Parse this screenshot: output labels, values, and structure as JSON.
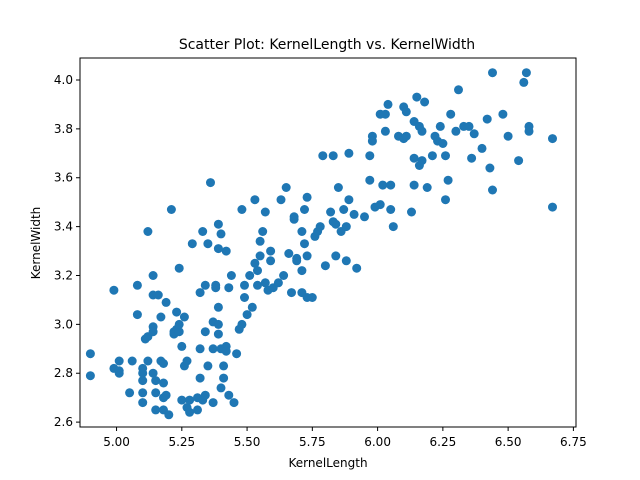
{
  "chart_data": {
    "type": "scatter",
    "title": "Scatter Plot: KernelLength vs. KernelWidth",
    "xlabel": "KernelLength",
    "ylabel": "KernelWidth",
    "xlim": [
      4.86,
      6.76
    ],
    "ylim": [
      2.58,
      4.09
    ],
    "xticks": [
      5.0,
      5.25,
      5.5,
      5.75,
      6.0,
      6.25,
      6.5,
      6.75
    ],
    "xtick_labels": [
      "5.00",
      "5.25",
      "5.50",
      "5.75",
      "6.00",
      "6.25",
      "6.50",
      "6.75"
    ],
    "yticks": [
      2.6,
      2.8,
      3.0,
      3.2,
      3.4,
      3.6,
      3.8,
      4.0
    ],
    "ytick_labels": [
      "2.6",
      "2.8",
      "3.0",
      "3.2",
      "3.4",
      "3.6",
      "3.8",
      "4.0"
    ],
    "grid": false,
    "marker_color": "#1f77b4",
    "series": [
      {
        "points": [
          [
            4.9,
            2.88
          ],
          [
            4.9,
            2.79
          ],
          [
            4.99,
            3.14
          ],
          [
            4.99,
            2.82
          ],
          [
            5.01,
            2.85
          ],
          [
            5.01,
            2.81
          ],
          [
            5.01,
            2.8
          ],
          [
            5.05,
            2.72
          ],
          [
            5.06,
            2.85
          ],
          [
            5.08,
            3.16
          ],
          [
            5.08,
            3.04
          ],
          [
            5.1,
            2.82
          ],
          [
            5.1,
            2.8
          ],
          [
            5.1,
            2.77
          ],
          [
            5.1,
            2.72
          ],
          [
            5.1,
            2.68
          ],
          [
            5.11,
            2.94
          ],
          [
            5.12,
            2.85
          ],
          [
            5.12,
            2.95
          ],
          [
            5.12,
            3.38
          ],
          [
            5.14,
            3.2
          ],
          [
            5.14,
            3.12
          ],
          [
            5.14,
            2.99
          ],
          [
            5.14,
            2.97
          ],
          [
            5.14,
            2.8
          ],
          [
            5.15,
            2.77
          ],
          [
            5.15,
            2.72
          ],
          [
            5.15,
            2.65
          ],
          [
            5.16,
            3.12
          ],
          [
            5.17,
            3.03
          ],
          [
            5.17,
            2.85
          ],
          [
            5.18,
            2.84
          ],
          [
            5.18,
            2.76
          ],
          [
            5.18,
            2.7
          ],
          [
            5.18,
            2.65
          ],
          [
            5.19,
            3.09
          ],
          [
            5.19,
            2.71
          ],
          [
            5.2,
            2.63
          ],
          [
            5.21,
            3.47
          ],
          [
            5.22,
            2.96
          ],
          [
            5.22,
            2.97
          ],
          [
            5.23,
            3.05
          ],
          [
            5.23,
            2.98
          ],
          [
            5.24,
            3.23
          ],
          [
            5.24,
            2.97
          ],
          [
            5.24,
            3.0
          ],
          [
            5.25,
            2.91
          ],
          [
            5.25,
            2.69
          ],
          [
            5.26,
            3.03
          ],
          [
            5.26,
            2.83
          ],
          [
            5.27,
            2.85
          ],
          [
            5.27,
            2.66
          ],
          [
            5.28,
            2.69
          ],
          [
            5.28,
            2.64
          ],
          [
            5.29,
            3.33
          ],
          [
            5.31,
            2.7
          ],
          [
            5.31,
            2.65
          ],
          [
            5.32,
            3.13
          ],
          [
            5.32,
            2.9
          ],
          [
            5.32,
            2.78
          ],
          [
            5.33,
            3.38
          ],
          [
            5.33,
            2.69
          ],
          [
            5.34,
            3.16
          ],
          [
            5.34,
            2.97
          ],
          [
            5.34,
            2.71
          ],
          [
            5.35,
            3.33
          ],
          [
            5.35,
            2.83
          ],
          [
            5.36,
            3.58
          ],
          [
            5.37,
            3.01
          ],
          [
            5.37,
            2.9
          ],
          [
            5.37,
            2.68
          ],
          [
            5.38,
            3.15
          ],
          [
            5.38,
            3.16
          ],
          [
            5.39,
            3.41
          ],
          [
            5.39,
            3.31
          ],
          [
            5.39,
            3.07
          ],
          [
            5.39,
            3.0
          ],
          [
            5.39,
            2.96
          ],
          [
            5.4,
            3.37
          ],
          [
            5.4,
            2.9
          ],
          [
            5.4,
            2.74
          ],
          [
            5.41,
            2.83
          ],
          [
            5.41,
            2.78
          ],
          [
            5.42,
            3.3
          ],
          [
            5.42,
            2.91
          ],
          [
            5.42,
            2.89
          ],
          [
            5.43,
            2.71
          ],
          [
            5.43,
            3.15
          ],
          [
            5.44,
            3.2
          ],
          [
            5.45,
            2.68
          ],
          [
            5.46,
            2.88
          ],
          [
            5.47,
            2.98
          ],
          [
            5.48,
            3.0
          ],
          [
            5.48,
            3.47
          ],
          [
            5.49,
            3.16
          ],
          [
            5.49,
            3.11
          ],
          [
            5.5,
            3.04
          ],
          [
            5.51,
            3.2
          ],
          [
            5.52,
            3.07
          ],
          [
            5.53,
            3.51
          ],
          [
            5.53,
            3.25
          ],
          [
            5.54,
            3.16
          ],
          [
            5.54,
            3.22
          ],
          [
            5.55,
            3.28
          ],
          [
            5.55,
            3.34
          ],
          [
            5.56,
            3.38
          ],
          [
            5.57,
            3.17
          ],
          [
            5.57,
            3.46
          ],
          [
            5.58,
            3.14
          ],
          [
            5.59,
            3.26
          ],
          [
            5.59,
            3.3
          ],
          [
            5.6,
            3.15
          ],
          [
            5.62,
            3.17
          ],
          [
            5.63,
            3.51
          ],
          [
            5.64,
            3.2
          ],
          [
            5.65,
            3.56
          ],
          [
            5.66,
            3.29
          ],
          [
            5.67,
            3.13
          ],
          [
            5.68,
            3.44
          ],
          [
            5.68,
            3.43
          ],
          [
            5.69,
            3.27
          ],
          [
            5.69,
            3.26
          ],
          [
            5.71,
            3.38
          ],
          [
            5.71,
            3.22
          ],
          [
            5.71,
            3.13
          ],
          [
            5.72,
            3.33
          ],
          [
            5.72,
            3.47
          ],
          [
            5.73,
            3.52
          ],
          [
            5.73,
            3.28
          ],
          [
            5.73,
            3.11
          ],
          [
            5.75,
            3.11
          ],
          [
            5.76,
            3.36
          ],
          [
            5.77,
            3.38
          ],
          [
            5.78,
            3.4
          ],
          [
            5.79,
            3.69
          ],
          [
            5.8,
            3.24
          ],
          [
            5.82,
            3.46
          ],
          [
            5.83,
            3.69
          ],
          [
            5.83,
            3.42
          ],
          [
            5.84,
            3.28
          ],
          [
            5.84,
            3.41
          ],
          [
            5.85,
            3.56
          ],
          [
            5.86,
            3.38
          ],
          [
            5.87,
            3.47
          ],
          [
            5.88,
            3.26
          ],
          [
            5.88,
            3.4
          ],
          [
            5.89,
            3.7
          ],
          [
            5.89,
            3.51
          ],
          [
            5.91,
            3.45
          ],
          [
            5.92,
            3.23
          ],
          [
            5.95,
            3.44
          ],
          [
            5.97,
            3.59
          ],
          [
            5.97,
            3.69
          ],
          [
            5.98,
            3.77
          ],
          [
            5.98,
            3.75
          ],
          [
            5.99,
            3.48
          ],
          [
            6.01,
            3.49
          ],
          [
            6.01,
            3.86
          ],
          [
            6.02,
            3.57
          ],
          [
            6.03,
            3.79
          ],
          [
            6.03,
            3.86
          ],
          [
            6.04,
            3.9
          ],
          [
            6.05,
            3.47
          ],
          [
            6.05,
            3.57
          ],
          [
            6.06,
            3.4
          ],
          [
            6.08,
            3.77
          ],
          [
            6.1,
            3.76
          ],
          [
            6.1,
            3.89
          ],
          [
            6.11,
            3.77
          ],
          [
            6.11,
            3.87
          ],
          [
            6.13,
            3.46
          ],
          [
            6.14,
            3.57
          ],
          [
            6.14,
            3.68
          ],
          [
            6.14,
            3.83
          ],
          [
            6.15,
            3.93
          ],
          [
            6.16,
            3.65
          ],
          [
            6.16,
            3.81
          ],
          [
            6.17,
            3.67
          ],
          [
            6.17,
            3.79
          ],
          [
            6.18,
            3.91
          ],
          [
            6.19,
            3.56
          ],
          [
            6.21,
            3.69
          ],
          [
            6.22,
            3.77
          ],
          [
            6.23,
            3.75
          ],
          [
            6.24,
            3.81
          ],
          [
            6.25,
            3.74
          ],
          [
            6.26,
            3.69
          ],
          [
            6.26,
            3.51
          ],
          [
            6.27,
            3.59
          ],
          [
            6.28,
            3.86
          ],
          [
            6.3,
            3.79
          ],
          [
            6.31,
            3.96
          ],
          [
            6.33,
            3.81
          ],
          [
            6.35,
            3.81
          ],
          [
            6.36,
            3.68
          ],
          [
            6.37,
            3.78
          ],
          [
            6.4,
            3.72
          ],
          [
            6.42,
            3.84
          ],
          [
            6.43,
            3.64
          ],
          [
            6.44,
            3.55
          ],
          [
            6.44,
            4.03
          ],
          [
            6.48,
            3.86
          ],
          [
            6.5,
            3.77
          ],
          [
            6.54,
            3.67
          ],
          [
            6.56,
            3.99
          ],
          [
            6.57,
            4.03
          ],
          [
            6.58,
            3.81
          ],
          [
            6.58,
            3.79
          ],
          [
            6.67,
            3.48
          ],
          [
            6.67,
            3.76
          ]
        ]
      }
    ]
  }
}
